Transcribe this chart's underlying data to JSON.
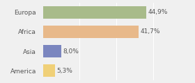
{
  "categories": [
    "Europa",
    "Africa",
    "Asia",
    "America"
  ],
  "values": [
    44.9,
    41.7,
    8.0,
    5.3
  ],
  "labels": [
    "44,9%",
    "41,7%",
    "8,0%",
    "5,3%"
  ],
  "bar_colors": [
    "#a8bb8a",
    "#e8b98a",
    "#7b86bf",
    "#f0d078"
  ],
  "background_color": "#f0f0f0",
  "xlim": [
    0,
    62
  ],
  "bar_height": 0.65,
  "label_fontsize": 6.5,
  "category_fontsize": 6.5,
  "grid_lines": [
    16,
    32,
    48
  ]
}
